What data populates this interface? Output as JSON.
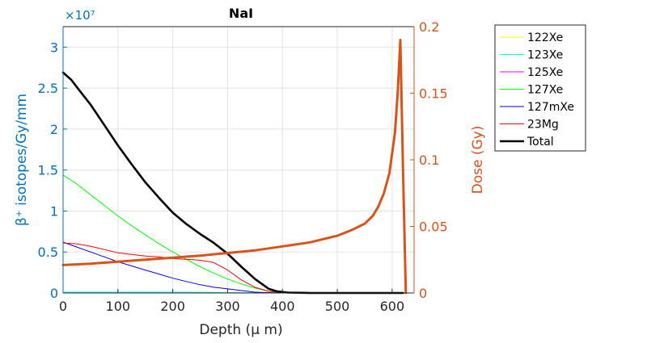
{
  "chart_data": {
    "type": "line",
    "title": "NaI",
    "xlabel": "Depth (μ m)",
    "ylabel_left": "β⁺ isotopes/Gy/mm",
    "ylabel_right": "Dose (Gy)",
    "y_left_exponent": "×10⁷",
    "xlim": [
      0,
      640
    ],
    "ylim_left": [
      0,
      3.25
    ],
    "ylim_right": [
      0,
      0.2
    ],
    "y_left_units_multiplier": 10000000,
    "x_ticks": [
      "0",
      "100",
      "200",
      "300",
      "400",
      "500",
      "600"
    ],
    "y_left_ticks": [
      "0",
      "0.5",
      "1",
      "1.5",
      "2",
      "2.5",
      "3"
    ],
    "y_right_ticks": [
      "0",
      "0.05",
      "0.1",
      "0.15",
      "0.2"
    ],
    "grid": true,
    "legend_position": "outside-right",
    "left_axis_color": "#0072bd",
    "right_axis_color": "#d95319",
    "series": [
      {
        "name": "122Xe",
        "axis": "left",
        "color": "#ffff00",
        "width": 1,
        "x": [
          0,
          100,
          200,
          300,
          400,
          500,
          620
        ],
        "y": [
          0.01,
          0.01,
          0.01,
          0.005,
          0,
          0,
          0
        ]
      },
      {
        "name": "123Xe",
        "axis": "left",
        "color": "#00ffff",
        "width": 1,
        "x": [
          0,
          100,
          200,
          300,
          400,
          500,
          620
        ],
        "y": [
          0.01,
          0.01,
          0.01,
          0.005,
          0,
          0,
          0
        ]
      },
      {
        "name": "125Xe",
        "axis": "left",
        "color": "#ff00ff",
        "width": 1,
        "x": [
          0,
          100,
          200,
          300,
          400,
          500,
          620
        ],
        "y": [
          0.0,
          0.0,
          0.0,
          0.0,
          0,
          0,
          0
        ]
      },
      {
        "name": "127Xe",
        "axis": "left",
        "color": "#00ff00",
        "width": 1,
        "x": [
          0,
          25,
          50,
          75,
          100,
          125,
          150,
          175,
          200,
          225,
          250,
          275,
          300,
          325,
          350,
          375,
          400,
          450,
          500,
          620
        ],
        "y": [
          1.44,
          1.33,
          1.2,
          1.07,
          0.94,
          0.82,
          0.71,
          0.6,
          0.5,
          0.41,
          0.32,
          0.24,
          0.17,
          0.11,
          0.06,
          0.02,
          0.005,
          0,
          0,
          0
        ]
      },
      {
        "name": "127mXe",
        "axis": "left",
        "color": "#0000ff",
        "width": 1,
        "x": [
          0,
          25,
          50,
          75,
          100,
          125,
          150,
          175,
          200,
          225,
          250,
          275,
          300,
          325,
          350,
          375,
          400,
          450,
          500,
          620
        ],
        "y": [
          0.62,
          0.56,
          0.5,
          0.44,
          0.38,
          0.33,
          0.28,
          0.23,
          0.18,
          0.14,
          0.1,
          0.07,
          0.05,
          0.03,
          0.01,
          0.004,
          0.001,
          0,
          0,
          0
        ]
      },
      {
        "name": "23Mg",
        "axis": "left",
        "color": "#ff0000",
        "width": 1,
        "x": [
          0,
          25,
          50,
          75,
          100,
          125,
          150,
          175,
          200,
          225,
          250,
          275,
          300,
          325,
          350,
          375,
          400,
          450,
          500,
          620
        ],
        "y": [
          0.61,
          0.6,
          0.57,
          0.53,
          0.49,
          0.47,
          0.45,
          0.44,
          0.42,
          0.41,
          0.4,
          0.37,
          0.28,
          0.16,
          0.07,
          0.02,
          0.005,
          0,
          0,
          0
        ]
      },
      {
        "name": "Total",
        "axis": "left",
        "color": "#000000",
        "width": 2.6,
        "x": [
          0,
          15,
          30,
          50,
          75,
          100,
          125,
          150,
          175,
          200,
          225,
          250,
          275,
          300,
          325,
          350,
          375,
          390,
          410,
          450,
          500,
          550,
          600,
          620
        ],
        "y": [
          2.69,
          2.6,
          2.47,
          2.3,
          2.05,
          1.8,
          1.57,
          1.35,
          1.16,
          0.98,
          0.84,
          0.72,
          0.61,
          0.48,
          0.32,
          0.17,
          0.05,
          0.02,
          0.005,
          0,
          0,
          0,
          0,
          0
        ]
      },
      {
        "name": "",
        "axis": "right",
        "color": "#d95319",
        "width": 3,
        "x": [
          0,
          50,
          100,
          150,
          200,
          250,
          300,
          350,
          400,
          450,
          500,
          525,
          550,
          565,
          575,
          585,
          595,
          600,
          605,
          610,
          615,
          620,
          625
        ],
        "y": [
          0.021,
          0.022,
          0.0235,
          0.025,
          0.0265,
          0.028,
          0.03,
          0.032,
          0.035,
          0.038,
          0.043,
          0.047,
          0.052,
          0.058,
          0.065,
          0.075,
          0.09,
          0.105,
          0.12,
          0.15,
          0.19,
          0.09,
          0.0
        ]
      }
    ]
  }
}
